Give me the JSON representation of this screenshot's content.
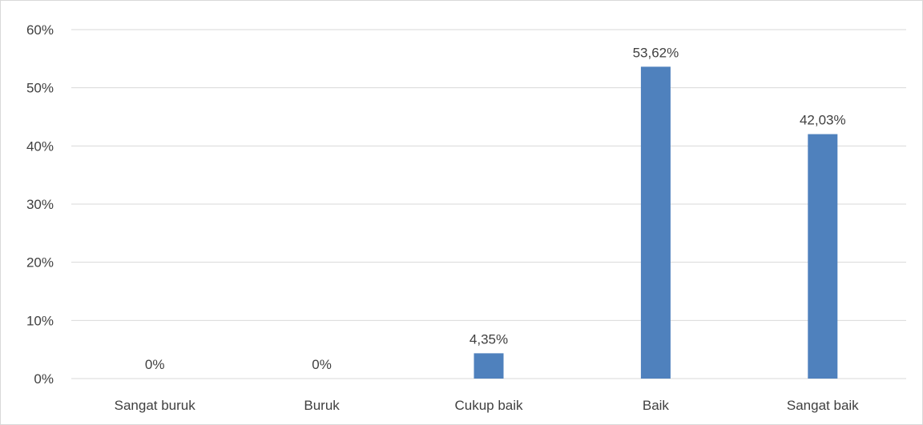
{
  "chart_data": {
    "type": "bar",
    "categories": [
      "Sangat buruk",
      "Buruk",
      "Cukup baik",
      "Baik",
      "Sangat baik"
    ],
    "values": [
      0,
      0,
      4.35,
      53.62,
      42.03
    ],
    "data_labels": [
      "0%",
      "0%",
      "4,35%",
      "53,62%",
      "42,03%"
    ],
    "y_ticks": [
      "0%",
      "10%",
      "20%",
      "30%",
      "40%",
      "50%",
      "60%"
    ],
    "ylim": [
      0,
      60
    ],
    "grid": true,
    "bar_color": "#4f81bd"
  }
}
